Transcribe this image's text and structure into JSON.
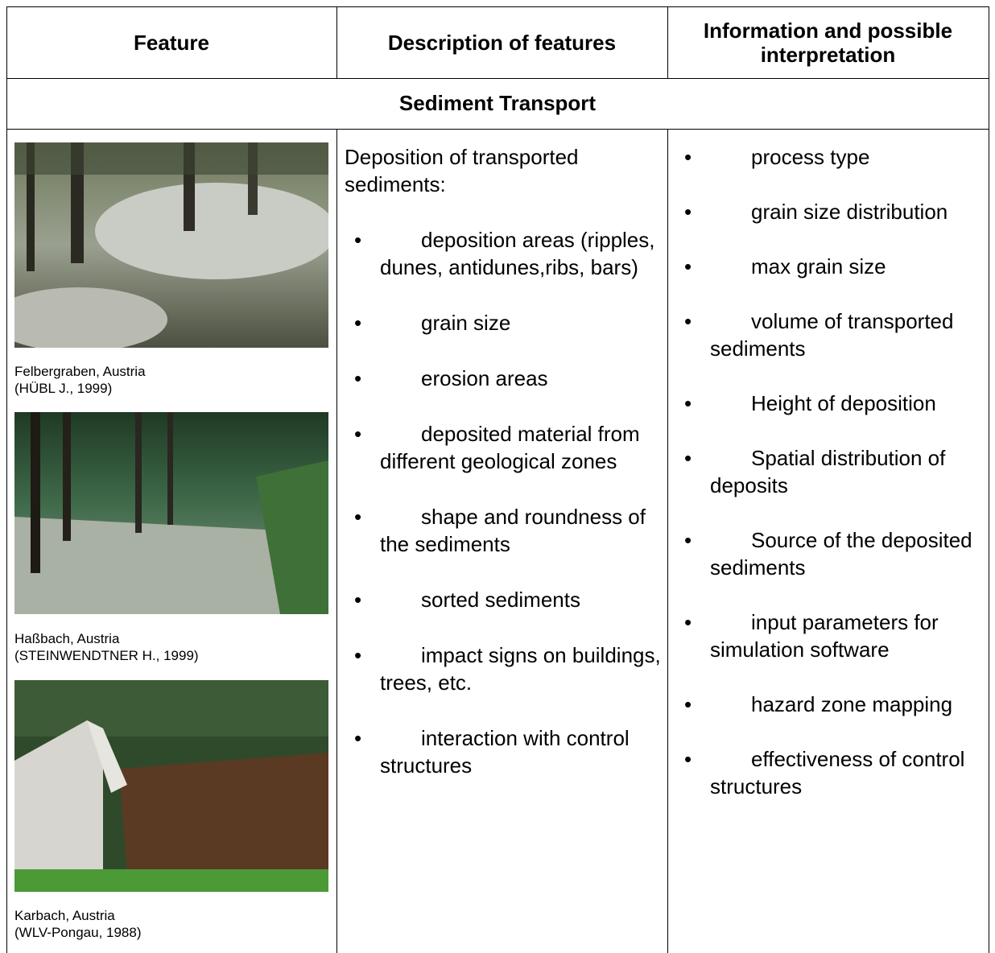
{
  "header": {
    "columns": [
      "Feature",
      "Description of features",
      "Information and possible interpretation"
    ]
  },
  "section": "Sediment Transport",
  "features": [
    {
      "place": "Felbergraben, Austria",
      "source": "(HÜBL J., 1999)"
    },
    {
      "place": "Haßbach, Austria",
      "source": "(STEINWENDTNER H., 1999)"
    },
    {
      "place": "Karbach, Austria",
      "source": "(WLV-Pongau, 1988)"
    }
  ],
  "description": {
    "intro": "Deposition of transported sediments:",
    "items": [
      "deposition areas (ripples, dunes, antidunes,ribs, bars)",
      "grain size",
      "erosion areas",
      "deposited material from different geological zones",
      "shape and roundness of the sediments",
      "sorted sediments",
      "impact signs on buildings, trees, etc.",
      "interaction with control structures"
    ]
  },
  "interpretation": {
    "items": [
      "process type",
      "grain size distribution",
      "max grain size",
      "volume of transported sediments",
      "Height of deposition",
      "Spatial distribution of deposits",
      "Source of the deposited sediments",
      "input parameters for simulation software",
      "hazard zone mapping",
      "effectiveness of control structures"
    ]
  }
}
